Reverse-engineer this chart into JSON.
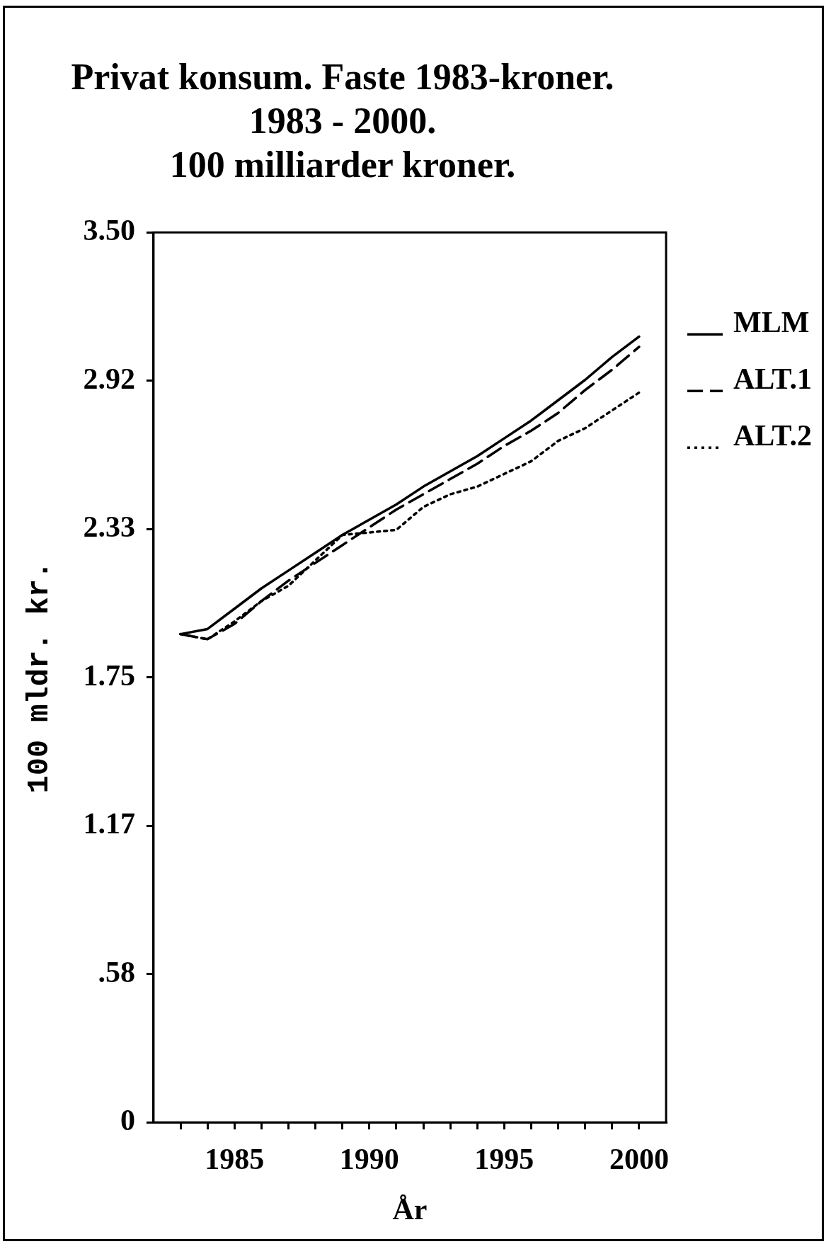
{
  "chart_data": {
    "type": "line",
    "title": "Privat konsum. Faste 1983-kroner.\n1983 - 2000.\n100 milliarder kroner.",
    "xlabel": "År",
    "ylabel": "100 mldr. kr.",
    "x": [
      1983,
      1984,
      1985,
      1986,
      1987,
      1988,
      1989,
      1990,
      1991,
      1992,
      1993,
      1994,
      1995,
      1996,
      1997,
      1998,
      1999,
      2000
    ],
    "series": [
      {
        "name": "MLM",
        "color": "#000000",
        "line_style": "solid",
        "values": [
          1.92,
          1.94,
          2.02,
          2.1,
          2.17,
          2.24,
          2.31,
          2.37,
          2.43,
          2.5,
          2.56,
          2.62,
          2.69,
          2.76,
          2.84,
          2.92,
          3.01,
          3.09
        ]
      },
      {
        "name": "ALT.1",
        "color": "#000000",
        "line_style": "dashed",
        "values": [
          1.92,
          1.9,
          1.96,
          2.05,
          2.13,
          2.2,
          2.27,
          2.34,
          2.41,
          2.47,
          2.53,
          2.59,
          2.66,
          2.72,
          2.79,
          2.88,
          2.96,
          3.05
        ]
      },
      {
        "name": "ALT.2",
        "color": "#000000",
        "line_style": "dotted",
        "values": [
          1.92,
          1.9,
          1.97,
          2.05,
          2.11,
          2.21,
          2.31,
          2.32,
          2.33,
          2.42,
          2.47,
          2.5,
          2.55,
          2.6,
          2.68,
          2.73,
          2.8,
          2.87
        ]
      }
    ],
    "xlim": [
      1982,
      2001
    ],
    "xticks": [
      {
        "value": 1983,
        "label": null
      },
      {
        "value": 1984,
        "label": null
      },
      1985,
      {
        "value": 1986,
        "label": null
      },
      {
        "value": 1987,
        "label": null
      },
      {
        "value": 1988,
        "label": null
      },
      {
        "value": 1989,
        "label": null
      },
      1990,
      {
        "value": 1991,
        "label": null
      },
      {
        "value": 1992,
        "label": null
      },
      {
        "value": 1993,
        "label": null
      },
      {
        "value": 1994,
        "label": null
      },
      1995,
      {
        "value": 1996,
        "label": null
      },
      {
        "value": 1997,
        "label": null
      },
      {
        "value": 1998,
        "label": null
      },
      {
        "value": 1999,
        "label": null
      },
      2000
    ],
    "ylim": [
      0,
      3.5
    ],
    "yticks": [
      0,
      {
        "value": 0.5833,
        "label": ".58"
      },
      {
        "value": 1.1667,
        "label": "1.17"
      },
      1.75,
      {
        "value": 2.3333,
        "label": "2.33"
      },
      {
        "value": 2.9167,
        "label": "2.92"
      },
      {
        "value": 3.5,
        "label": "3.50"
      }
    ],
    "grid": false,
    "legend": "right",
    "marker": "none"
  }
}
